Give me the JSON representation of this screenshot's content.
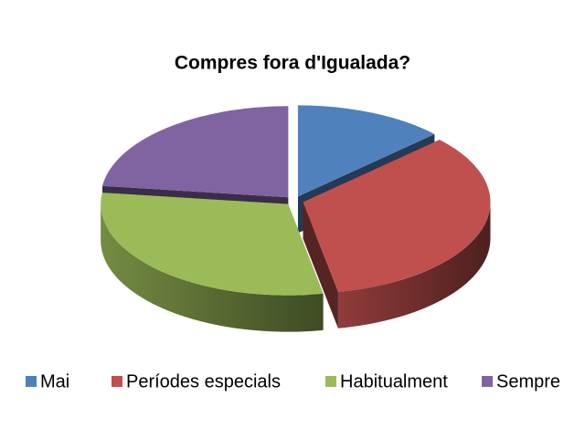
{
  "chart_data": {
    "type": "pie3d",
    "title": "Compres fora d'Igualada?",
    "categories": [
      "Mai",
      "Períodes especials",
      "Habitualment",
      "Sempre"
    ],
    "values": [
      13,
      34,
      30,
      23
    ],
    "colors": [
      "#4f81bd",
      "#c0504d",
      "#9bbb59",
      "#8064a2"
    ],
    "legend": "bottom"
  }
}
